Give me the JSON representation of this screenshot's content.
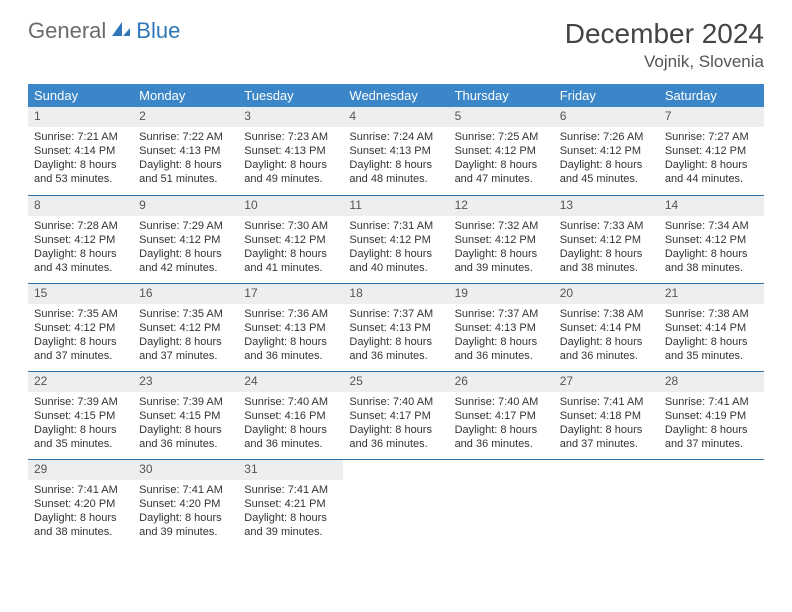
{
  "logo": {
    "text1": "General",
    "text2": "Blue"
  },
  "title": "December 2024",
  "location": "Vojnik, Slovenia",
  "colors": {
    "header_bg": "#3a86c8",
    "header_text": "#ffffff",
    "row_border": "#2a6fa5",
    "daynum_bg": "#eceef0",
    "body_text": "#333333",
    "logo_gray": "#6b6b6b",
    "logo_blue": "#2f77b9"
  },
  "weekdays": [
    "Sunday",
    "Monday",
    "Tuesday",
    "Wednesday",
    "Thursday",
    "Friday",
    "Saturday"
  ],
  "weeks": [
    [
      {
        "d": "1",
        "sr": "7:21 AM",
        "ss": "4:14 PM",
        "dl": "8 hours and 53 minutes."
      },
      {
        "d": "2",
        "sr": "7:22 AM",
        "ss": "4:13 PM",
        "dl": "8 hours and 51 minutes."
      },
      {
        "d": "3",
        "sr": "7:23 AM",
        "ss": "4:13 PM",
        "dl": "8 hours and 49 minutes."
      },
      {
        "d": "4",
        "sr": "7:24 AM",
        "ss": "4:13 PM",
        "dl": "8 hours and 48 minutes."
      },
      {
        "d": "5",
        "sr": "7:25 AM",
        "ss": "4:12 PM",
        "dl": "8 hours and 47 minutes."
      },
      {
        "d": "6",
        "sr": "7:26 AM",
        "ss": "4:12 PM",
        "dl": "8 hours and 45 minutes."
      },
      {
        "d": "7",
        "sr": "7:27 AM",
        "ss": "4:12 PM",
        "dl": "8 hours and 44 minutes."
      }
    ],
    [
      {
        "d": "8",
        "sr": "7:28 AM",
        "ss": "4:12 PM",
        "dl": "8 hours and 43 minutes."
      },
      {
        "d": "9",
        "sr": "7:29 AM",
        "ss": "4:12 PM",
        "dl": "8 hours and 42 minutes."
      },
      {
        "d": "10",
        "sr": "7:30 AM",
        "ss": "4:12 PM",
        "dl": "8 hours and 41 minutes."
      },
      {
        "d": "11",
        "sr": "7:31 AM",
        "ss": "4:12 PM",
        "dl": "8 hours and 40 minutes."
      },
      {
        "d": "12",
        "sr": "7:32 AM",
        "ss": "4:12 PM",
        "dl": "8 hours and 39 minutes."
      },
      {
        "d": "13",
        "sr": "7:33 AM",
        "ss": "4:12 PM",
        "dl": "8 hours and 38 minutes."
      },
      {
        "d": "14",
        "sr": "7:34 AM",
        "ss": "4:12 PM",
        "dl": "8 hours and 38 minutes."
      }
    ],
    [
      {
        "d": "15",
        "sr": "7:35 AM",
        "ss": "4:12 PM",
        "dl": "8 hours and 37 minutes."
      },
      {
        "d": "16",
        "sr": "7:35 AM",
        "ss": "4:12 PM",
        "dl": "8 hours and 37 minutes."
      },
      {
        "d": "17",
        "sr": "7:36 AM",
        "ss": "4:13 PM",
        "dl": "8 hours and 36 minutes."
      },
      {
        "d": "18",
        "sr": "7:37 AM",
        "ss": "4:13 PM",
        "dl": "8 hours and 36 minutes."
      },
      {
        "d": "19",
        "sr": "7:37 AM",
        "ss": "4:13 PM",
        "dl": "8 hours and 36 minutes."
      },
      {
        "d": "20",
        "sr": "7:38 AM",
        "ss": "4:14 PM",
        "dl": "8 hours and 36 minutes."
      },
      {
        "d": "21",
        "sr": "7:38 AM",
        "ss": "4:14 PM",
        "dl": "8 hours and 35 minutes."
      }
    ],
    [
      {
        "d": "22",
        "sr": "7:39 AM",
        "ss": "4:15 PM",
        "dl": "8 hours and 35 minutes."
      },
      {
        "d": "23",
        "sr": "7:39 AM",
        "ss": "4:15 PM",
        "dl": "8 hours and 36 minutes."
      },
      {
        "d": "24",
        "sr": "7:40 AM",
        "ss": "4:16 PM",
        "dl": "8 hours and 36 minutes."
      },
      {
        "d": "25",
        "sr": "7:40 AM",
        "ss": "4:17 PM",
        "dl": "8 hours and 36 minutes."
      },
      {
        "d": "26",
        "sr": "7:40 AM",
        "ss": "4:17 PM",
        "dl": "8 hours and 36 minutes."
      },
      {
        "d": "27",
        "sr": "7:41 AM",
        "ss": "4:18 PM",
        "dl": "8 hours and 37 minutes."
      },
      {
        "d": "28",
        "sr": "7:41 AM",
        "ss": "4:19 PM",
        "dl": "8 hours and 37 minutes."
      }
    ],
    [
      {
        "d": "29",
        "sr": "7:41 AM",
        "ss": "4:20 PM",
        "dl": "8 hours and 38 minutes."
      },
      {
        "d": "30",
        "sr": "7:41 AM",
        "ss": "4:20 PM",
        "dl": "8 hours and 39 minutes."
      },
      {
        "d": "31",
        "sr": "7:41 AM",
        "ss": "4:21 PM",
        "dl": "8 hours and 39 minutes."
      },
      null,
      null,
      null,
      null
    ]
  ],
  "labels": {
    "sunrise": "Sunrise: ",
    "sunset": "Sunset: ",
    "daylight": "Daylight: "
  }
}
